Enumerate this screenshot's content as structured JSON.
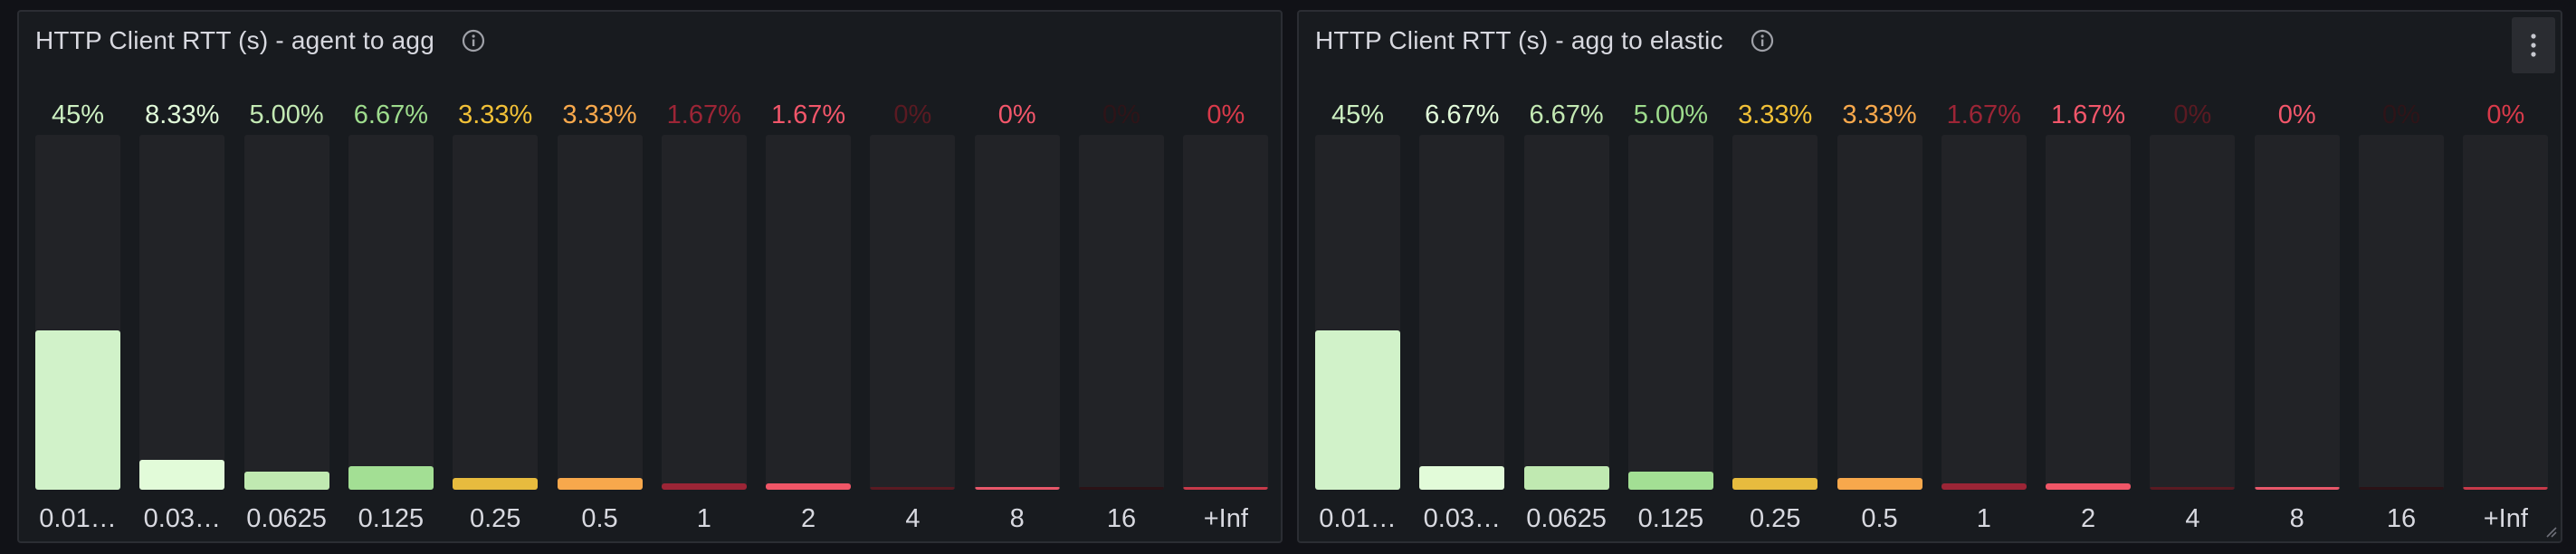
{
  "panels": [
    {
      "title": "HTTP Client RTT (s) - agent to agg",
      "chart_data": {
        "type": "bar",
        "categories": [
          "0.01…",
          "0.03…",
          "0.0625",
          "0.125",
          "0.25",
          "0.5",
          "1",
          "2",
          "4",
          "8",
          "16",
          "+Inf"
        ],
        "values": [
          45,
          8.33,
          5.0,
          6.67,
          3.33,
          3.33,
          1.67,
          1.67,
          0,
          0,
          0,
          0
        ],
        "value_labels": [
          "45%",
          "8.33%",
          "5.00%",
          "6.67%",
          "3.33%",
          "3.33%",
          "1.67%",
          "1.67%",
          "0%",
          "0%",
          "0%",
          "0%"
        ],
        "label_colors": [
          "#cdf0c2",
          "#e1fad9",
          "#c3e9b3",
          "#9edc8d",
          "#f1c037",
          "#f7a84c",
          "#9c2536",
          "#f2566a",
          "#5a1a22",
          "#f2566a",
          "#2e1418",
          "#d83a4a"
        ],
        "bar_colors": [
          "#d1f2c9",
          "#e2fbd9",
          "#c0e9b1",
          "#a3df94",
          "#e7bb3e",
          "#f7a84c",
          "#9c2536",
          "#f05667",
          "#5a1a22",
          "#e8576a",
          "#2b1216",
          "#c73a4a"
        ],
        "ylim": [
          0,
          100
        ]
      }
    },
    {
      "title": "HTTP Client RTT (s) - agg to elastic",
      "chart_data": {
        "type": "bar",
        "categories": [
          "0.01…",
          "0.03…",
          "0.0625",
          "0.125",
          "0.25",
          "0.5",
          "1",
          "2",
          "4",
          "8",
          "16",
          "+Inf"
        ],
        "values": [
          45,
          6.67,
          6.67,
          5.0,
          3.33,
          3.33,
          1.67,
          1.67,
          0,
          0,
          0,
          0
        ],
        "value_labels": [
          "45%",
          "6.67%",
          "6.67%",
          "5.00%",
          "3.33%",
          "3.33%",
          "1.67%",
          "1.67%",
          "0%",
          "0%",
          "0%",
          "0%"
        ],
        "label_colors": [
          "#cdf0c2",
          "#e1fad9",
          "#c3e9b3",
          "#9edc8d",
          "#f1c037",
          "#f7a84c",
          "#9c2536",
          "#f2566a",
          "#5a1a22",
          "#f2566a",
          "#2e1418",
          "#d83a4a"
        ],
        "bar_colors": [
          "#d1f2c9",
          "#e2fbd9",
          "#c0e9b1",
          "#a3df94",
          "#e7bb3e",
          "#f7a84c",
          "#9c2536",
          "#f05667",
          "#5a1a22",
          "#e8576a",
          "#2b1216",
          "#c73a4a"
        ],
        "ylim": [
          0,
          100
        ]
      }
    }
  ]
}
